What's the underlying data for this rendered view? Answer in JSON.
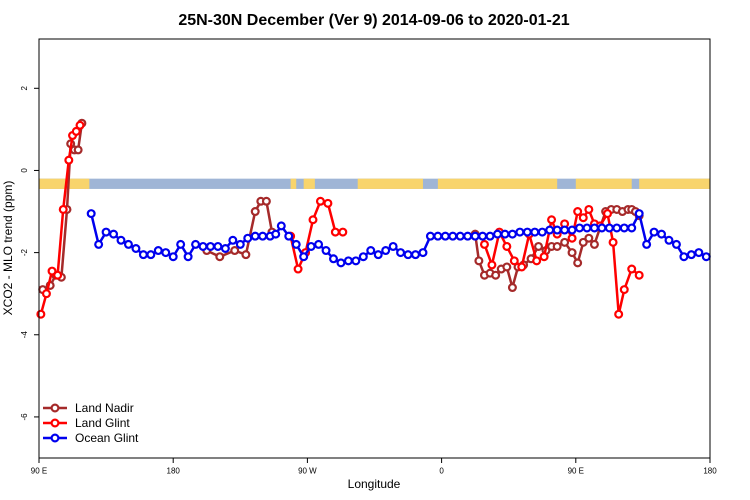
{
  "chart_data": {
    "type": "line",
    "title": "25N-30N December (Ver 9)   2014-09-06 to 2020-01-21",
    "xlabel": "Longitude",
    "ylabel": "XCO2 - MLO trend (ppm)",
    "xlim": [
      -90,
      270
    ],
    "ylim": [
      -7,
      3.2
    ],
    "x_ticks": [
      {
        "value": -90,
        "label": "90 E"
      },
      {
        "value": -18,
        "label": "180"
      },
      {
        "value": 54,
        "label": "90 W"
      },
      {
        "value": 126,
        "label": "0"
      },
      {
        "value": 198,
        "label": "90 E"
      },
      {
        "value": 270,
        "label": "180"
      }
    ],
    "y_ticks": [
      {
        "value": 2,
        "label": "2"
      },
      {
        "value": 0,
        "label": "0"
      },
      {
        "value": -2,
        "label": "-2"
      },
      {
        "value": -4,
        "label": "-4"
      },
      {
        "value": -6,
        "label": "-6"
      }
    ],
    "grid": false,
    "legend_position": "bottom-left",
    "land_strip": {
      "y_range": [
        -0.45,
        -0.2
      ],
      "colors": {
        "ocean": "#9fb5d6",
        "land": "#f8d46c"
      },
      "land_segments": [
        [
          -90,
          -63
        ],
        [
          45,
          48
        ],
        [
          52,
          58
        ],
        [
          81,
          116
        ],
        [
          124,
          188
        ],
        [
          198,
          228
        ],
        [
          232,
          270
        ]
      ]
    },
    "series": [
      {
        "name": "Land Nadir",
        "color": "#a52a2a",
        "x": [
          -88,
          -84,
          -81,
          -78,
          -75,
          -73,
          -71,
          -69,
          -67,
          0,
          7,
          15,
          21,
          26,
          29,
          32,
          35,
          144,
          146,
          149,
          152,
          155,
          158,
          161,
          164,
          167,
          170,
          174,
          178,
          182,
          185,
          188,
          192,
          196,
          199,
          202,
          205,
          208,
          214,
          217,
          220,
          223,
          226,
          228,
          230,
          232
        ],
        "y": [
          -2.9,
          -2.8,
          -2.55,
          -2.6,
          -0.95,
          0.65,
          0.5,
          0.5,
          1.15,
          -1.95,
          -2.1,
          -1.95,
          -2.05,
          -1.0,
          -0.75,
          -0.75,
          -1.5,
          -1.55,
          -2.2,
          -2.55,
          -2.5,
          -2.55,
          -2.4,
          -2.35,
          -2.85,
          -2.35,
          -2.3,
          -2.15,
          -1.85,
          -1.95,
          -1.85,
          -1.85,
          -1.75,
          -2.0,
          -2.25,
          -1.75,
          -1.65,
          -1.8,
          -1.0,
          -0.95,
          -0.95,
          -1.0,
          -0.95,
          -0.95,
          -1.0,
          -1.1
        ]
      },
      {
        "name": "Land Glint",
        "color": "#ff0000",
        "x": [
          -89,
          -86,
          -83,
          -80,
          -77,
          -74,
          -72,
          -70,
          -68,
          45,
          49,
          53,
          57,
          61,
          65,
          69,
          73,
          149,
          153,
          157,
          161,
          165,
          169,
          173,
          177,
          181,
          185,
          188,
          192,
          196,
          199,
          202,
          205,
          208,
          211,
          215,
          218,
          221,
          224,
          228,
          232
        ],
        "y": [
          -3.5,
          -3.0,
          -2.45,
          -2.55,
          -0.95,
          0.25,
          0.85,
          0.95,
          1.1,
          -1.6,
          -2.4,
          -2.0,
          -1.2,
          -0.75,
          -0.8,
          -1.5,
          -1.5,
          -1.8,
          -2.3,
          -1.5,
          -1.85,
          -2.2,
          -2.35,
          -1.55,
          -2.2,
          -2.1,
          -1.2,
          -1.55,
          -1.3,
          -1.65,
          -1.0,
          -1.15,
          -0.95,
          -1.3,
          -1.35,
          -1.05,
          -1.75,
          -3.5,
          -2.9,
          -2.4,
          -2.55
        ]
      },
      {
        "name": "Ocean Glint",
        "color": "#0000ee",
        "x": [
          -62,
          -58,
          -54,
          -50,
          -46,
          -42,
          -38,
          -34,
          -30,
          -26,
          -22,
          -18,
          -14,
          -10,
          -6,
          -2,
          2,
          6,
          10,
          14,
          18,
          22,
          26,
          30,
          34,
          37,
          40,
          44,
          48,
          52,
          56,
          60,
          64,
          68,
          72,
          76,
          80,
          84,
          88,
          92,
          96,
          100,
          104,
          108,
          112,
          116,
          120,
          124,
          128,
          132,
          136,
          140,
          144,
          148,
          152,
          156,
          160,
          164,
          168,
          172,
          176,
          180,
          184,
          188,
          192,
          196,
          200,
          204,
          208,
          212,
          216,
          220,
          224,
          228,
          232,
          236,
          240,
          244,
          248,
          252,
          256,
          260,
          264,
          268
        ],
        "y": [
          -1.05,
          -1.8,
          -1.5,
          -1.55,
          -1.7,
          -1.8,
          -1.9,
          -2.05,
          -2.05,
          -1.95,
          -2.0,
          -2.1,
          -1.8,
          -2.1,
          -1.8,
          -1.85,
          -1.85,
          -1.85,
          -1.9,
          -1.7,
          -1.8,
          -1.65,
          -1.6,
          -1.6,
          -1.6,
          -1.55,
          -1.35,
          -1.6,
          -1.8,
          -2.1,
          -1.85,
          -1.8,
          -1.95,
          -2.15,
          -2.25,
          -2.2,
          -2.2,
          -2.1,
          -1.95,
          -2.05,
          -1.95,
          -1.85,
          -2.0,
          -2.05,
          -2.05,
          -2.0,
          -1.6,
          -1.6,
          -1.6,
          -1.6,
          -1.6,
          -1.6,
          -1.6,
          -1.6,
          -1.6,
          -1.55,
          -1.55,
          -1.55,
          -1.5,
          -1.5,
          -1.5,
          -1.5,
          -1.45,
          -1.45,
          -1.45,
          -1.45,
          -1.4,
          -1.4,
          -1.4,
          -1.4,
          -1.4,
          -1.4,
          -1.4,
          -1.4,
          -1.05,
          -1.8,
          -1.5,
          -1.55,
          -1.7,
          -1.8,
          -2.1,
          -2.05,
          -2.0,
          -2.1
        ]
      }
    ]
  }
}
